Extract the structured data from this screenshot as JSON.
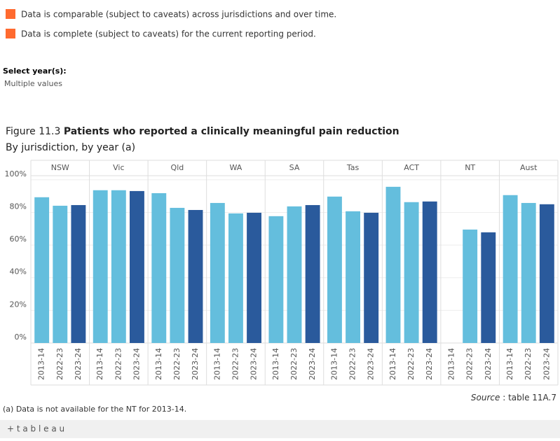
{
  "legend_notes": [
    "Data is comparable (subject to caveats) across jurisdictions and over time.",
    "Data is complete (subject to caveats) for the current reporting period."
  ],
  "filter": {
    "label": "Select year(s):",
    "value": "Multiple values"
  },
  "figure_number": "Figure 11.3",
  "footnote": "(a) Data is not available for the NT for 2013-14.",
  "source": {
    "prefix": "Source",
    "text": ": table 11A.7"
  },
  "brand": "+ t a b l e a u",
  "chart_data": {
    "type": "bar",
    "title": "Patients who reported a clinically meaningful pain reduction",
    "subtitle": "By jurisdiction, by year (a)",
    "categories": [
      "NSW",
      "Vic",
      "Qld",
      "WA",
      "SA",
      "Tas",
      "ACT",
      "NT",
      "Aust"
    ],
    "series": [
      {
        "name": "2013-14",
        "color": "#64bedd",
        "values": [
          89.3,
          93.6,
          91.8,
          85.8,
          77.7,
          89.7,
          95.7,
          null,
          90.6
        ]
      },
      {
        "name": "2022-23",
        "color": "#64bedd",
        "values": [
          84.1,
          93.6,
          82.8,
          79.4,
          83.7,
          80.7,
          86.3,
          69.5,
          85.8
        ]
      },
      {
        "name": "2023-24",
        "color": "#2a5a9c",
        "values": [
          84.5,
          93.1,
          81.5,
          79.8,
          84.5,
          79.8,
          86.7,
          67.8,
          85.0
        ]
      }
    ],
    "ylim": [
      0,
      102.5
    ],
    "yticks": [
      {
        "value": 0,
        "label": "0%"
      },
      {
        "value": 20,
        "label": "20%"
      },
      {
        "value": 40,
        "label": "40%"
      },
      {
        "value": 60,
        "label": "60%"
      },
      {
        "value": 80,
        "label": "80%"
      },
      {
        "value": 100,
        "label": "100%"
      }
    ],
    "grid": true
  }
}
